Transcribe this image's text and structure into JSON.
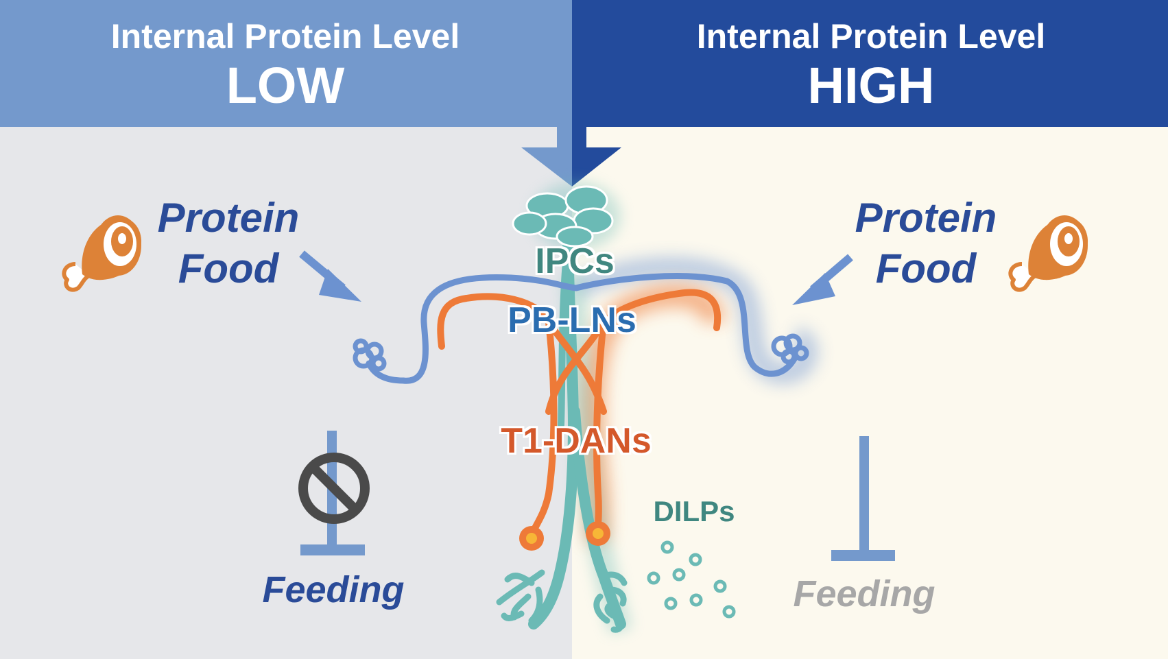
{
  "colors": {
    "left_bg": "#e6e7ea",
    "right_bg": "#fcf9ee",
    "left_header": "#7499cc",
    "right_header": "#234b9c",
    "neuron_blue": "#6c92d0",
    "neuron_orange": "#ee7a38",
    "neuron_teal": "#6bbab5",
    "meat_orange": "#dd8237",
    "dark_blue_text": "#2a4b98",
    "teal_text": "#3f8780",
    "orange_text": "#d4582a",
    "grey_text": "#a7a7a7",
    "inhibit_blue": "#7499cc",
    "block_symbol": "#4a4a4a"
  },
  "left_panel": {
    "header_line1": "Internal Protein Level",
    "header_line2": "LOW",
    "food_line1": "Protein",
    "food_line2": "Food",
    "food_icon": "meat-icon",
    "feeding_label": "Feeding",
    "block_icon": "prohibited-icon"
  },
  "right_panel": {
    "header_line1": "Internal Protein Level",
    "header_line2": "HIGH",
    "food_line1": "Protein",
    "food_line2": "Food",
    "food_icon": "meat-icon",
    "feeding_label": "Feeding",
    "dilps_label": "DILPs"
  },
  "neurons": {
    "ipcs_label": "IPCs",
    "pbln_label": "PB-LNs",
    "t1dan_label": "T1-DANs"
  }
}
